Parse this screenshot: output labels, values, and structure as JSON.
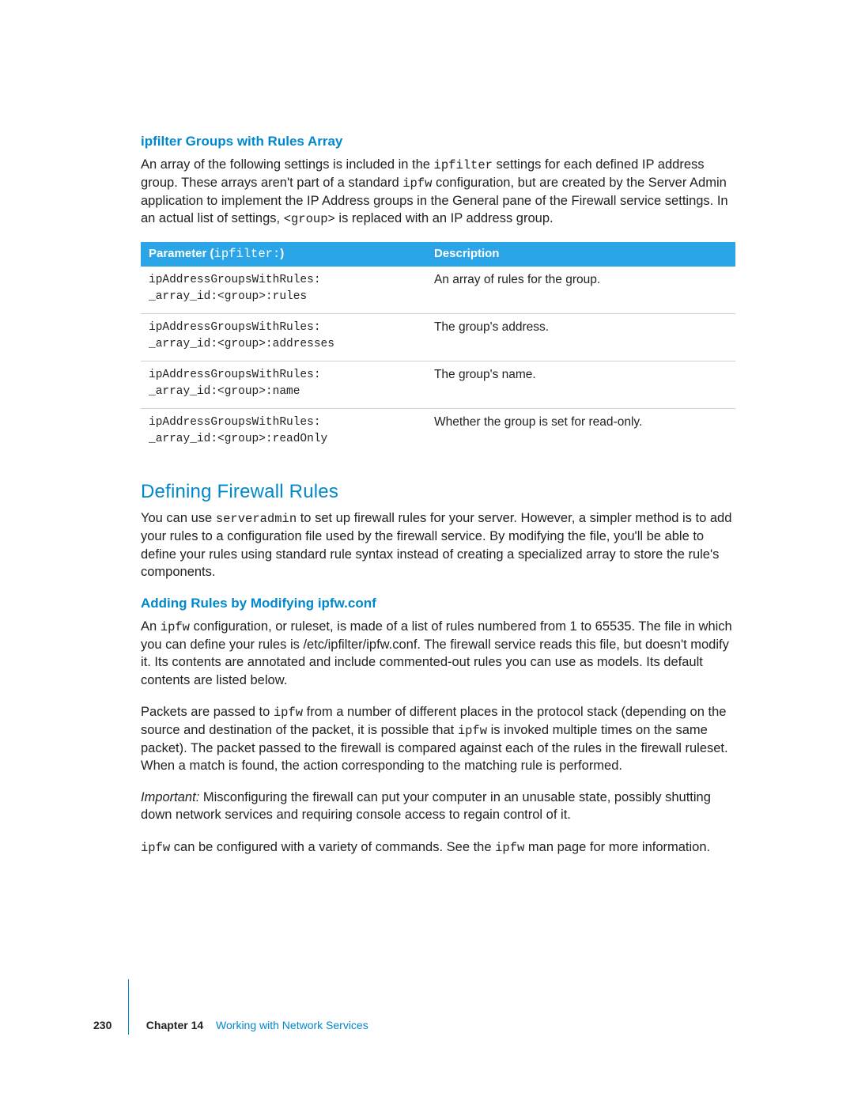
{
  "colors": {
    "accent": "#0088cc",
    "tableHeaderBg": "#2aa5e8",
    "tableHeaderFg": "#ffffff",
    "ruleColor": "#d0d0d0",
    "bodyText": "#222222",
    "background": "#ffffff"
  },
  "typography": {
    "bodyFont": "Lucida Grande / Helvetica",
    "monoFont": "Courier",
    "bodySize": 16.5,
    "subheadSize": 17,
    "sectionHeadSize": 24,
    "footerSize": 14
  },
  "sub1": {
    "title": "ipfilter Groups with Rules Array",
    "para_a": "An array of the following settings is included in the ",
    "code_a": "ipfilter",
    "para_b": " settings for each defined IP address group. These arrays aren't part of a standard ",
    "code_b": "ipfw",
    "para_c": " configuration, but are created by the Server Admin application to implement the IP Address groups in the General pane of the Firewall service settings. In an actual list of settings, ",
    "code_c": "<group>",
    "para_d": " is replaced with an IP address group."
  },
  "table": {
    "header_param_a": "Parameter (",
    "header_param_code": "ipfilter:",
    "header_param_b": ")",
    "header_desc": "Description",
    "col_param_width": "48%",
    "rows": [
      {
        "param_l1": "ipAddressGroupsWithRules:",
        "param_l2": "_array_id:<group>:rules",
        "desc": "An array of rules for the group."
      },
      {
        "param_l1": "ipAddressGroupsWithRules:",
        "param_l2": "_array_id:<group>:addresses",
        "desc": "The group's address."
      },
      {
        "param_l1": "ipAddressGroupsWithRules:",
        "param_l2": "_array_id:<group>:name",
        "desc": "The group's name."
      },
      {
        "param_l1": "ipAddressGroupsWithRules:",
        "param_l2": "_array_id:<group>:readOnly",
        "desc": "Whether the group is set for read-only."
      }
    ]
  },
  "section": {
    "title": "Defining Firewall Rules",
    "p1_a": "You can use ",
    "p1_code": "serveradmin",
    "p1_b": " to set up firewall rules for your server. However, a simpler method is to add your rules to a configuration file used by the firewall service. By modifying the file, you'll be able to define your rules using standard rule syntax instead of creating a specialized array to store the rule's components."
  },
  "sub2": {
    "title": "Adding Rules by Modifying ipfw.conf",
    "p1_a": "An ",
    "p1_code": "ipfw",
    "p1_b": " configuration, or ruleset, is made of a list of rules numbered from 1 to 65535. The file in which you can define your rules is /etc/ipfilter/ipfw.conf. The firewall service reads this file, but doesn't modify it. Its contents are annotated and include commented-out rules you can use as models. Its default contents are listed below.",
    "p2_a": "Packets are passed to ",
    "p2_code1": "ipfw",
    "p2_b": " from a number of different places in the protocol stack (depending on the source and destination of the packet, it is possible that ",
    "p2_code2": "ipfw",
    "p2_c": " is invoked multiple times on the same packet).  The packet passed to the firewall is compared against each of the rules in the firewall ruleset.  When a match is found, the action corresponding to the matching rule is performed.",
    "p3_label": "Important:",
    "p3_body": "  Misconfiguring the firewall can put your computer in an unusable state, possibly shutting down network services and requiring console access to regain control of it.",
    "p4_code1": "ipfw",
    "p4_a": " can be configured with a variety of commands. See the ",
    "p4_code2": "ipfw",
    "p4_b": "  man page for more information."
  },
  "footer": {
    "pageNumber": "230",
    "chapterLabel": "Chapter 14",
    "chapterTitle": "Working with Network Services"
  }
}
